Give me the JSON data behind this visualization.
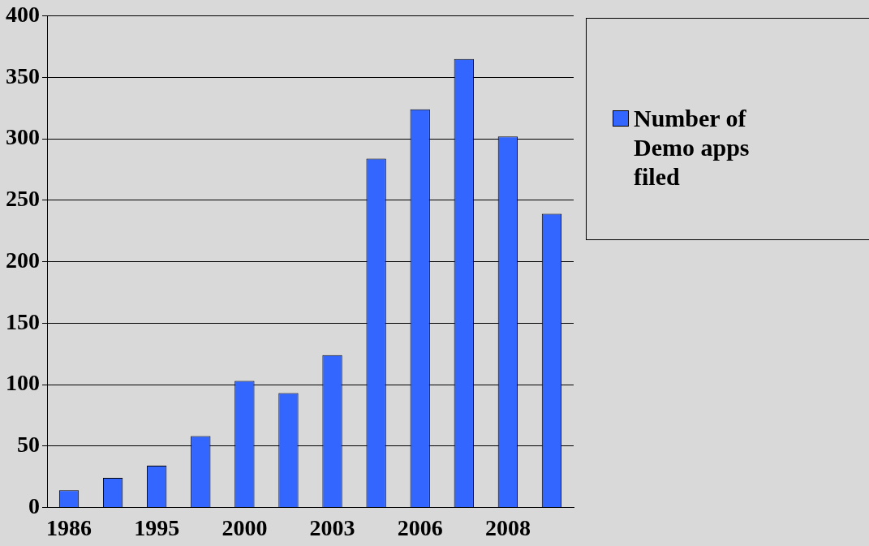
{
  "chart_data": {
    "type": "bar",
    "categories": [
      "1986",
      null,
      "1995",
      null,
      "2000",
      null,
      "2003",
      null,
      "2006",
      null,
      "2008",
      null
    ],
    "series": [
      {
        "name": "Number of Demo apps filed",
        "color": "#3366ff",
        "values": [
          14,
          24,
          34,
          58,
          103,
          93,
          124,
          284,
          324,
          365,
          302,
          239
        ]
      }
    ],
    "ylim": [
      0,
      400
    ],
    "yticks": [
      0,
      50,
      100,
      150,
      200,
      250,
      300,
      350,
      400
    ],
    "grid": "y",
    "legend": "right"
  }
}
